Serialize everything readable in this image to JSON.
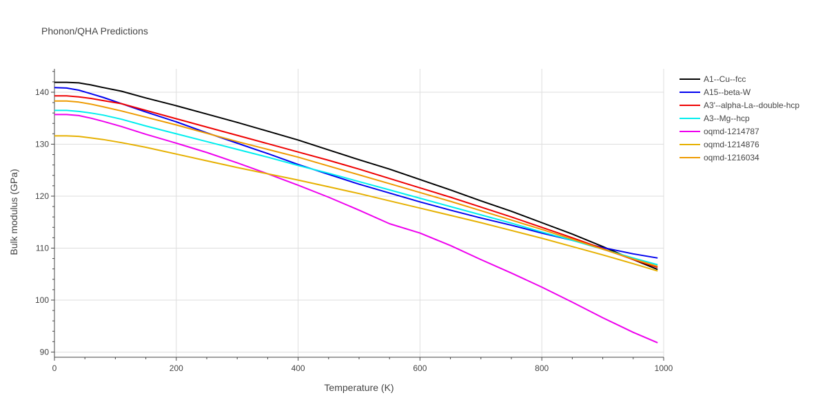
{
  "chart_data": {
    "type": "line",
    "title": "Phonon/QHA Predictions",
    "xlabel": "Temperature (K)",
    "ylabel": "Bulk modulus (GPa)",
    "xlim": [
      0,
      1000
    ],
    "ylim": [
      89,
      144.5
    ],
    "x_ticks": [
      0,
      200,
      400,
      600,
      800,
      1000
    ],
    "y_ticks": [
      90,
      100,
      110,
      120,
      130,
      140
    ],
    "grid": true,
    "legend_position": "top-right",
    "series": [
      {
        "name": "A1--Cu--fcc",
        "color": "#000000",
        "x": [
          0,
          20,
          40,
          60,
          80,
          110,
          150,
          200,
          250,
          300,
          350,
          400,
          450,
          500,
          550,
          600,
          650,
          700,
          750,
          800,
          850,
          900,
          950,
          990
        ],
        "y": [
          141.9,
          141.9,
          141.8,
          141.4,
          140.9,
          140.2,
          138.9,
          137.4,
          135.8,
          134.2,
          132.5,
          130.8,
          128.9,
          127.0,
          125.2,
          123.2,
          121.2,
          119.1,
          117.1,
          114.9,
          112.7,
          110.3,
          107.8,
          105.9
        ]
      },
      {
        "name": "A15--beta-W",
        "color": "#0000ee",
        "x": [
          0,
          20,
          40,
          60,
          80,
          110,
          150,
          200,
          250,
          300,
          350,
          400,
          450,
          500,
          550,
          600,
          650,
          700,
          750,
          800,
          850,
          900,
          950,
          990
        ],
        "y": [
          140.9,
          140.8,
          140.4,
          139.7,
          139.0,
          137.8,
          136.2,
          134.3,
          132.2,
          130.2,
          128.2,
          126.1,
          124.2,
          122.3,
          120.6,
          118.9,
          117.3,
          115.8,
          114.4,
          112.9,
          111.5,
          110.1,
          108.9,
          108.1
        ]
      },
      {
        "name": "A3'--alpha-La--double-hcp",
        "color": "#ee0000",
        "x": [
          0,
          20,
          40,
          60,
          80,
          110,
          150,
          200,
          250,
          300,
          350,
          400,
          450,
          500,
          550,
          600,
          650,
          700,
          750,
          800,
          850,
          900,
          950,
          990
        ],
        "y": [
          139.3,
          139.3,
          139.1,
          138.8,
          138.4,
          137.8,
          136.5,
          134.9,
          133.3,
          131.7,
          130.1,
          128.5,
          126.9,
          125.2,
          123.4,
          121.6,
          119.8,
          117.9,
          116.0,
          114.0,
          112.0,
          109.9,
          107.8,
          106.3
        ]
      },
      {
        "name": "A3--Mg--hcp",
        "color": "#00eeee",
        "x": [
          0,
          20,
          40,
          60,
          80,
          110,
          150,
          200,
          250,
          300,
          350,
          400,
          450,
          500,
          550,
          600,
          650,
          700,
          750,
          800,
          850,
          900,
          950,
          990
        ],
        "y": [
          136.5,
          136.5,
          136.3,
          136.0,
          135.6,
          134.8,
          133.5,
          132.0,
          130.5,
          129.0,
          127.5,
          125.9,
          124.4,
          122.8,
          121.2,
          119.6,
          118.0,
          116.4,
          114.8,
          113.1,
          111.5,
          109.8,
          108.1,
          106.8
        ]
      },
      {
        "name": "oqmd-1214787",
        "color": "#ee00ee",
        "x": [
          0,
          20,
          40,
          60,
          80,
          110,
          150,
          200,
          250,
          300,
          350,
          400,
          450,
          500,
          550,
          600,
          650,
          700,
          750,
          800,
          850,
          900,
          950,
          990
        ],
        "y": [
          135.7,
          135.7,
          135.5,
          135.0,
          134.4,
          133.4,
          131.9,
          130.2,
          128.4,
          126.4,
          124.3,
          122.1,
          119.8,
          117.3,
          114.7,
          112.9,
          110.5,
          107.8,
          105.2,
          102.5,
          99.6,
          96.6,
          93.8,
          91.8
        ]
      },
      {
        "name": "oqmd-1214876",
        "color": "#e6b000",
        "x": [
          0,
          20,
          40,
          60,
          80,
          110,
          150,
          200,
          250,
          300,
          350,
          400,
          450,
          500,
          550,
          600,
          650,
          700,
          750,
          800,
          850,
          900,
          950,
          990
        ],
        "y": [
          131.6,
          131.6,
          131.5,
          131.2,
          130.9,
          130.3,
          129.4,
          128.1,
          126.8,
          125.5,
          124.3,
          123.1,
          121.8,
          120.5,
          119.1,
          117.7,
          116.3,
          114.9,
          113.4,
          111.9,
          110.3,
          108.7,
          107.0,
          105.6
        ]
      },
      {
        "name": "oqmd-1216034",
        "color": "#ee9a00",
        "x": [
          0,
          20,
          40,
          60,
          80,
          110,
          150,
          200,
          250,
          300,
          350,
          400,
          450,
          500,
          550,
          600,
          650,
          700,
          750,
          800,
          850,
          900,
          950,
          990
        ],
        "y": [
          138.3,
          138.3,
          138.1,
          137.7,
          137.2,
          136.4,
          135.2,
          133.7,
          132.1,
          130.5,
          129.0,
          127.5,
          125.8,
          124.1,
          122.4,
          120.7,
          119.0,
          117.2,
          115.4,
          113.6,
          111.7,
          109.8,
          107.9,
          106.5
        ]
      }
    ]
  }
}
